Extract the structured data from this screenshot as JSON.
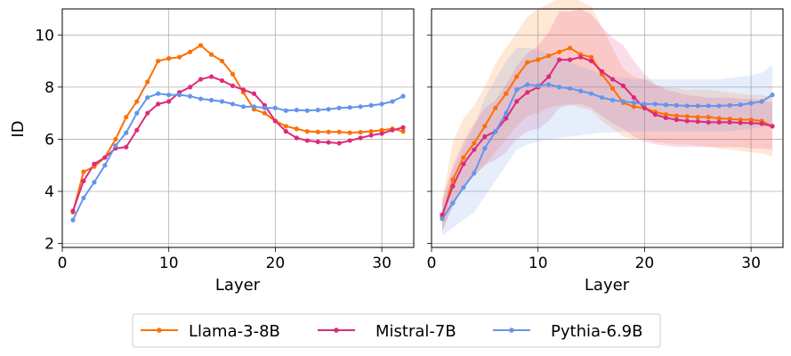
{
  "chart_data": [
    {
      "type": "line",
      "panel": "left",
      "title": "",
      "xlabel": "Layer",
      "ylabel": "ID",
      "xlim": [
        0,
        33
      ],
      "ylim": [
        1.85,
        11.0
      ],
      "xticks": [
        0,
        10,
        20,
        30
      ],
      "yticks": [
        2,
        4,
        6,
        8,
        10
      ],
      "grid": true,
      "x": [
        1,
        2,
        3,
        4,
        5,
        6,
        7,
        8,
        9,
        10,
        11,
        12,
        13,
        14,
        15,
        16,
        17,
        18,
        19,
        20,
        21,
        22,
        23,
        24,
        25,
        26,
        27,
        28,
        29,
        30,
        31,
        32
      ],
      "series": [
        {
          "name": "Llama-3-8B",
          "color": "#ff6f00",
          "values": [
            3.2,
            4.75,
            4.95,
            5.3,
            6.0,
            6.85,
            7.45,
            8.2,
            9.0,
            9.1,
            9.15,
            9.35,
            9.6,
            9.25,
            9.0,
            8.5,
            7.8,
            7.15,
            7.0,
            6.7,
            6.5,
            6.4,
            6.3,
            6.28,
            6.28,
            6.28,
            6.25,
            6.27,
            6.3,
            6.35,
            6.4,
            6.3
          ]
        },
        {
          "name": "Mistral-7B",
          "color": "#dd2a7b",
          "values": [
            3.25,
            4.4,
            5.05,
            5.3,
            5.65,
            5.7,
            6.35,
            7.0,
            7.35,
            7.45,
            7.8,
            8.0,
            8.3,
            8.4,
            8.25,
            8.05,
            7.9,
            7.75,
            7.3,
            6.7,
            6.3,
            6.05,
            5.95,
            5.9,
            5.88,
            5.85,
            5.95,
            6.05,
            6.15,
            6.22,
            6.35,
            6.45
          ]
        },
        {
          "name": "Pythia-6.9B",
          "color": "#6495ed",
          "values": [
            2.9,
            3.75,
            4.35,
            5.0,
            5.75,
            6.25,
            7.0,
            7.6,
            7.75,
            7.7,
            7.7,
            7.65,
            7.55,
            7.5,
            7.45,
            7.35,
            7.25,
            7.25,
            7.2,
            7.2,
            7.1,
            7.12,
            7.1,
            7.12,
            7.15,
            7.2,
            7.22,
            7.25,
            7.3,
            7.35,
            7.45,
            7.65
          ]
        }
      ]
    },
    {
      "type": "line",
      "panel": "right",
      "title": "",
      "xlabel": "Layer",
      "ylabel": "",
      "xlim": [
        0,
        33
      ],
      "ylim": [
        1.85,
        11.0
      ],
      "xticks": [
        0,
        10,
        20,
        30
      ],
      "yticks": [
        2,
        4,
        6,
        8,
        10
      ],
      "grid": true,
      "shaded_bands": true,
      "x": [
        1,
        2,
        3,
        4,
        5,
        6,
        7,
        8,
        9,
        10,
        11,
        12,
        13,
        14,
        15,
        16,
        17,
        18,
        19,
        20,
        21,
        22,
        23,
        24,
        25,
        26,
        27,
        28,
        29,
        30,
        31,
        32
      ],
      "series": [
        {
          "name": "Llama-3-8B",
          "color": "#ff6f00",
          "values": [
            3.0,
            4.45,
            5.3,
            5.85,
            6.5,
            7.2,
            7.75,
            8.4,
            8.95,
            9.05,
            9.2,
            9.35,
            9.5,
            9.25,
            9.15,
            8.5,
            7.95,
            7.4,
            7.25,
            7.2,
            7.05,
            6.95,
            6.9,
            6.88,
            6.85,
            6.85,
            6.8,
            6.78,
            6.75,
            6.75,
            6.7,
            6.5
          ],
          "lower": [
            2.4,
            3.5,
            4.1,
            4.6,
            5.0,
            5.5,
            6.0,
            6.5,
            6.9,
            7.0,
            7.2,
            7.3,
            7.35,
            7.2,
            7.1,
            6.7,
            6.4,
            6.1,
            6.0,
            6.0,
            5.9,
            5.85,
            5.8,
            5.8,
            5.75,
            5.7,
            5.65,
            5.6,
            5.55,
            5.5,
            5.45,
            5.35
          ],
          "upper": [
            3.6,
            5.9,
            6.8,
            7.3,
            8.0,
            8.9,
            9.5,
            10.1,
            10.7,
            11.0,
            11.2,
            11.4,
            11.5,
            11.3,
            11.1,
            10.3,
            9.5,
            8.7,
            8.4,
            8.3,
            8.1,
            8.0,
            7.95,
            7.9,
            7.9,
            7.9,
            7.85,
            7.8,
            7.75,
            7.7,
            7.7,
            7.6
          ]
        },
        {
          "name": "Mistral-7B",
          "color": "#dd2a7b",
          "values": [
            3.1,
            4.2,
            5.05,
            5.6,
            6.1,
            6.3,
            6.8,
            7.45,
            7.8,
            8.0,
            8.4,
            9.05,
            9.05,
            9.15,
            9.0,
            8.6,
            8.3,
            8.05,
            7.6,
            7.2,
            6.95,
            6.82,
            6.75,
            6.7,
            6.68,
            6.65,
            6.65,
            6.65,
            6.63,
            6.62,
            6.6,
            6.5
          ],
          "lower": [
            2.5,
            3.4,
            4.2,
            4.6,
            5.0,
            5.2,
            5.5,
            6.0,
            6.3,
            6.4,
            6.7,
            7.2,
            7.3,
            7.35,
            7.2,
            6.9,
            6.6,
            6.4,
            6.1,
            5.9,
            5.8,
            5.75,
            5.7,
            5.7,
            5.7,
            5.7,
            5.7,
            5.7,
            5.7,
            5.65,
            5.65,
            5.6
          ],
          "upper": [
            3.7,
            5.0,
            5.9,
            6.6,
            7.2,
            7.5,
            8.1,
            8.8,
            9.3,
            9.6,
            10.1,
            10.9,
            10.9,
            11.0,
            10.8,
            10.3,
            9.9,
            9.6,
            9.0,
            8.5,
            8.1,
            7.9,
            7.8,
            7.7,
            7.65,
            7.6,
            7.6,
            7.6,
            7.55,
            7.55,
            7.5,
            7.4
          ]
        },
        {
          "name": "Pythia-6.9B",
          "color": "#6495ed",
          "values": [
            2.95,
            3.55,
            4.15,
            4.7,
            5.65,
            6.3,
            7.0,
            7.9,
            8.1,
            8.05,
            8.1,
            8.0,
            7.95,
            7.85,
            7.75,
            7.6,
            7.5,
            7.45,
            7.4,
            7.35,
            7.35,
            7.32,
            7.3,
            7.28,
            7.28,
            7.28,
            7.28,
            7.3,
            7.32,
            7.38,
            7.45,
            7.7
          ],
          "lower": [
            2.3,
            2.6,
            2.9,
            3.2,
            3.8,
            4.4,
            5.0,
            5.6,
            5.8,
            5.9,
            6.0,
            6.05,
            6.1,
            6.15,
            6.2,
            6.25,
            6.25,
            6.3,
            6.3,
            6.3,
            6.3,
            6.3,
            6.3,
            6.3,
            6.3,
            6.3,
            6.3,
            6.3,
            6.35,
            6.4,
            6.45,
            6.55
          ],
          "upper": [
            3.6,
            4.8,
            5.7,
            6.5,
            7.6,
            8.3,
            9.0,
            9.5,
            9.5,
            9.4,
            9.3,
            9.1,
            8.95,
            8.8,
            8.65,
            8.5,
            8.4,
            8.35,
            8.3,
            8.3,
            8.3,
            8.3,
            8.3,
            8.3,
            8.3,
            8.3,
            8.3,
            8.35,
            8.4,
            8.45,
            8.55,
            8.85
          ]
        }
      ]
    }
  ],
  "legend": {
    "placement": "bottom-center",
    "entries": [
      {
        "label": "Llama-3-8B",
        "color": "#ff6f00"
      },
      {
        "label": "Mistral-7B",
        "color": "#dd2a7b"
      },
      {
        "label": "Pythia-6.9B",
        "color": "#6495ed"
      }
    ]
  }
}
